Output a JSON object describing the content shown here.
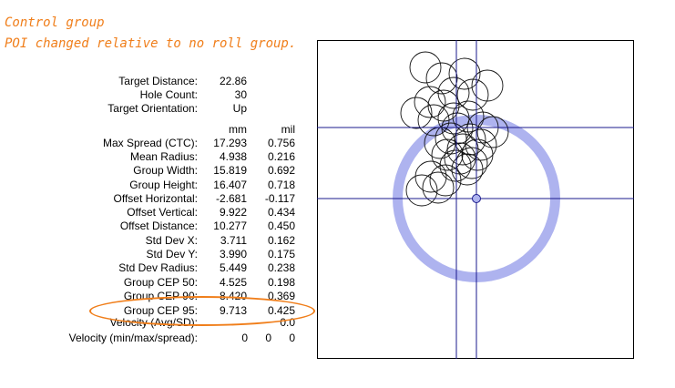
{
  "annotation": {
    "line1": "Control group",
    "line2": "POI changed relative to no roll group."
  },
  "stats": {
    "header": {
      "target_distance_label": "Target Distance:",
      "target_distance_value": "22.86",
      "hole_count_label": "Hole Count:",
      "hole_count_value": "30",
      "orientation_label": "Target Orientation:",
      "orientation_value": "Up"
    },
    "units": {
      "col1": "mm",
      "col2": "mil"
    },
    "rows": [
      {
        "label": "Max Spread (CTC):",
        "mm": "17.293",
        "mil": "0.756"
      },
      {
        "label": "Mean Radius:",
        "mm": "4.938",
        "mil": "0.216"
      },
      {
        "label": "Group Width:",
        "mm": "15.819",
        "mil": "0.692"
      },
      {
        "label": "Group Height:",
        "mm": "16.407",
        "mil": "0.718"
      },
      {
        "label": "Offset Horizontal:",
        "mm": "-2.681",
        "mil": "-0.117"
      },
      {
        "label": "Offset Vertical:",
        "mm": "9.922",
        "mil": "0.434"
      },
      {
        "label": "Offset Distance:",
        "mm": "10.277",
        "mil": "0.450"
      },
      {
        "label": "Std Dev X:",
        "mm": "3.711",
        "mil": "0.162"
      },
      {
        "label": "Std Dev Y:",
        "mm": "3.990",
        "mil": "0.175"
      },
      {
        "label": "Std Dev Radius:",
        "mm": "5.449",
        "mil": "0.238"
      },
      {
        "label": "Group CEP 50:",
        "mm": "4.525",
        "mil": "0.198"
      },
      {
        "label": "Group CEP 90:",
        "mm": "8.420",
        "mil": "0.369"
      },
      {
        "label": "Group CEP 95:",
        "mm": "9.713",
        "mil": "0.425"
      },
      {
        "label": "Velocity (Avg/SD):",
        "mm": "",
        "mil": "0.0"
      }
    ],
    "velocity_mms": {
      "label": "Velocity (min/max/spread):",
      "min": "0",
      "max": "0",
      "spread": "0"
    }
  },
  "colors": {
    "annotation": "#f07e1a",
    "cep_ring": "#aeb3ef",
    "crosshair": "#1a1a8c"
  }
}
